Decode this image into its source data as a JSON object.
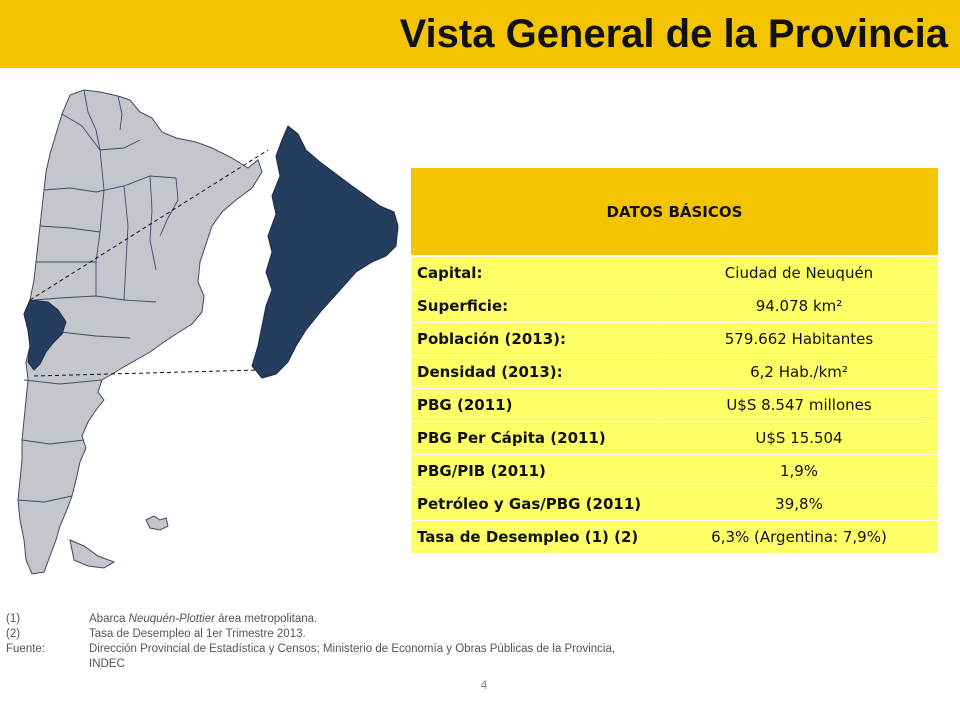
{
  "header": {
    "title": "Vista General de la Provincia"
  },
  "table": {
    "heading": "DATOS BÁSICOS",
    "rows": [
      {
        "label": "Capital:",
        "value": "Ciudad de Neuquén"
      },
      {
        "label": "Superficie:",
        "value": "94.078 km²"
      },
      {
        "label": "Población (2013):",
        "value": "579.662 Habitantes"
      },
      {
        "label": "Densidad (2013):",
        "value": "6,2 Hab./km²"
      },
      {
        "label": "PBG (2011)",
        "value": "U$S 8.547 millones"
      },
      {
        "label": "PBG Per Cápita (2011)",
        "value": "U$S 15.504"
      },
      {
        "label": "PBG/PIB (2011)",
        "value": "1,9%"
      },
      {
        "label": "Petróleo y Gas/PBG  (2011)",
        "value": "39,8%"
      },
      {
        "label": "Tasa de Desempleo (1) (2)",
        "value": "6,3% (Argentina: 7,9%)"
      }
    ]
  },
  "notes": {
    "n1_num": "(1)",
    "n1_italic": "Neuquén-Plottier",
    "n1_pre": "Abarca ",
    "n1_post": " área metropolitana.",
    "n2_num": "(2)",
    "n2_text": "Tasa de Desempleo al 1er Trimestre 2013.",
    "source_label": "Fuente:",
    "source_text": "Dirección Provincial de Estadística  y Censos; Ministerio de Economía y Obras Públicas de la Provincia,",
    "source_text2": "INDEC"
  },
  "page_number": "4",
  "colors": {
    "accent": "#f5c400",
    "table_row": "#ffff66",
    "province_highlight": "#253d5e",
    "map_fill": "#c4c6cb",
    "map_border": "#3a4a66"
  }
}
